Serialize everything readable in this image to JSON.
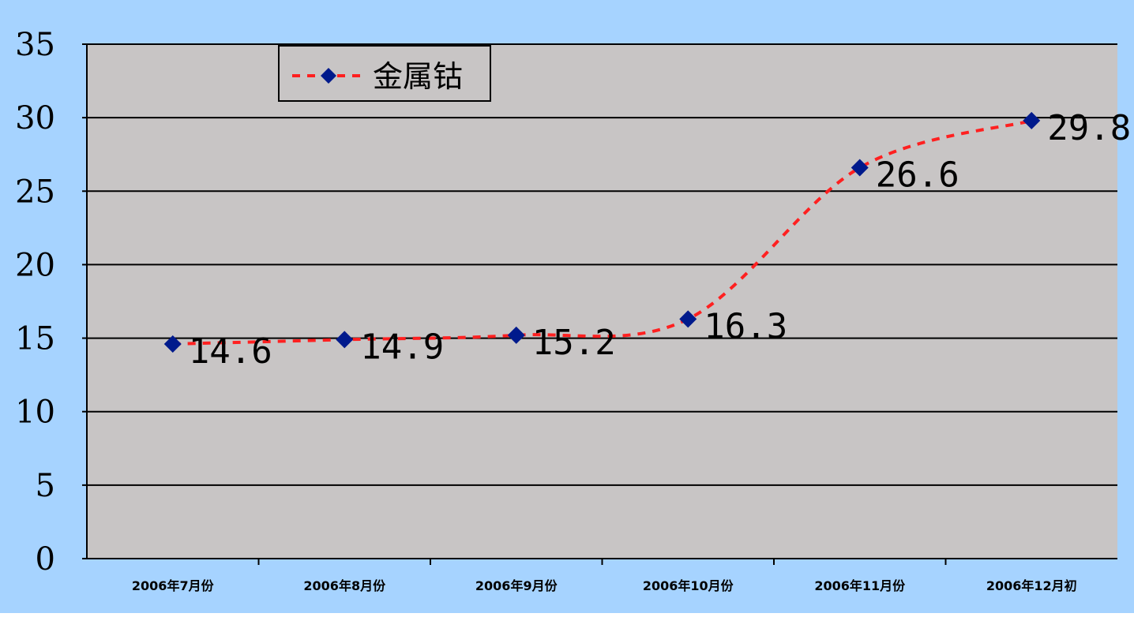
{
  "colors": {
    "background": "#a6d3ff",
    "plot_area": "#c8c5c5",
    "gridline": "#000000",
    "series_line": "#ff2020",
    "marker": "#001a8c"
  },
  "legend": {
    "label": "金属钴",
    "icon": "diamond-marker-icon"
  },
  "chart_data": {
    "type": "line",
    "categories": [
      "2006年7月份",
      "2006年8月份",
      "2006年9月份",
      "2006年10月份",
      "2006年11月份",
      "2006年12月初"
    ],
    "series": [
      {
        "name": "金属钴",
        "values": [
          14.6,
          14.9,
          15.2,
          16.3,
          26.6,
          29.8
        ],
        "data_labels": [
          "14.6",
          "14.9",
          "15.2",
          "16.3",
          "26.6",
          "29.8"
        ],
        "line_style": "dashed",
        "smoothed": true,
        "marker": "diamond"
      }
    ],
    "yticks": [
      "0",
      "5",
      "10",
      "15",
      "20",
      "25",
      "30",
      "35"
    ],
    "ylim": [
      0,
      35
    ],
    "grid": true,
    "legend_position": "top-left"
  }
}
